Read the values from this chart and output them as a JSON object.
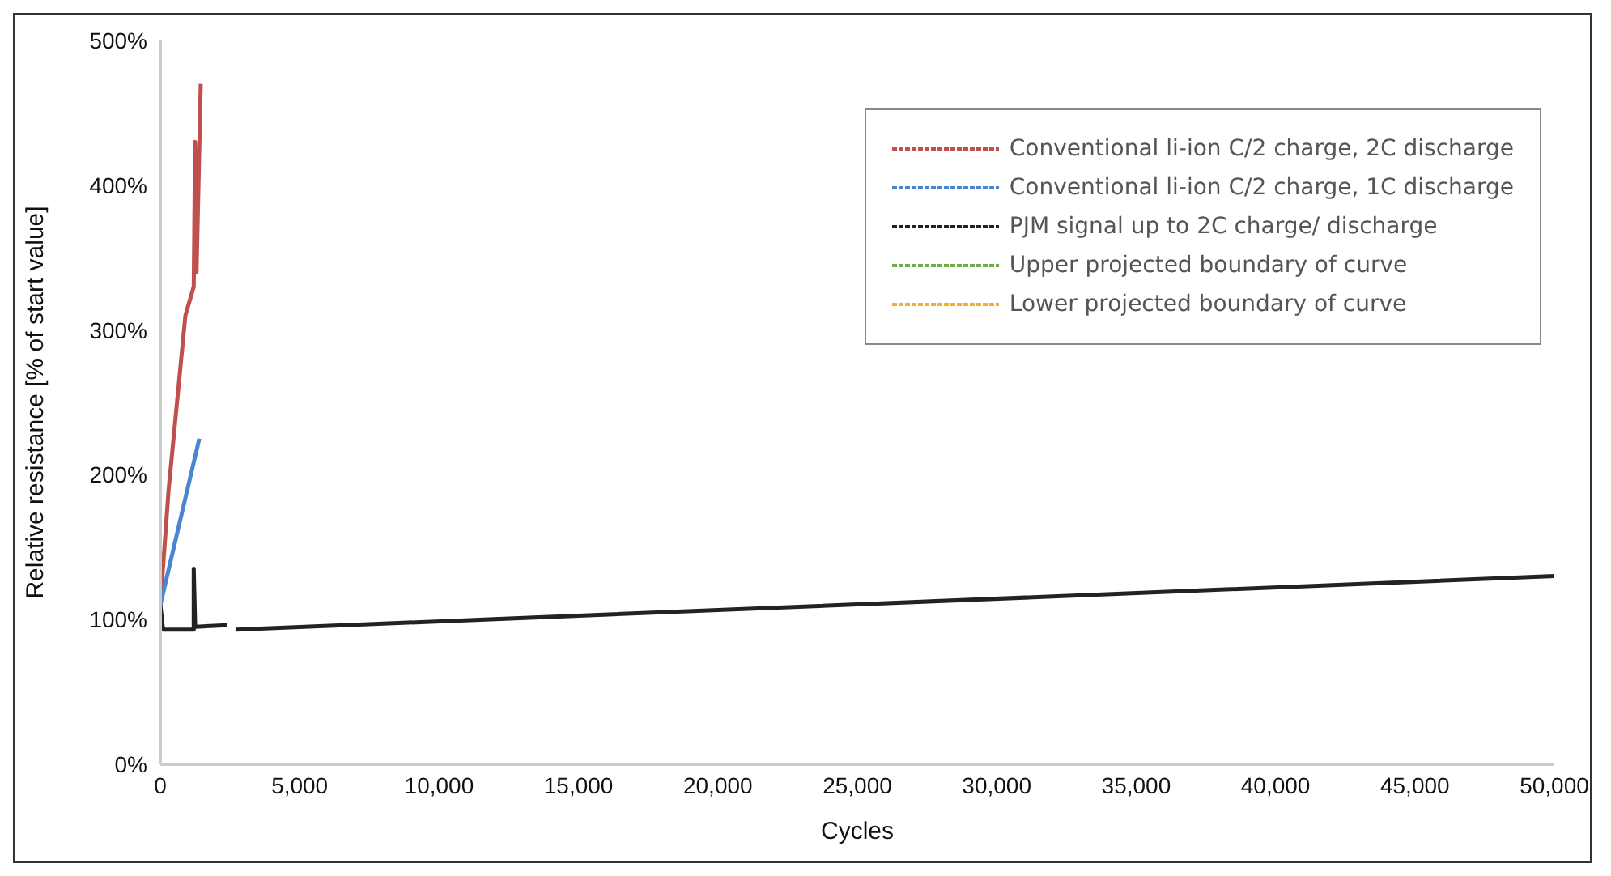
{
  "chart_data": {
    "type": "line",
    "xlabel": "Cycles",
    "ylabel": "Relative resistance [% of start value]",
    "xlim": [
      0,
      50000
    ],
    "xticks": [
      {
        "value": 0,
        "label": "0"
      },
      {
        "value": 5000,
        "label": "5,000"
      },
      {
        "value": 10000,
        "label": "10,000"
      },
      {
        "value": 15000,
        "label": "15,000"
      },
      {
        "value": 20000,
        "label": "20,000"
      },
      {
        "value": 25000,
        "label": "25,000"
      },
      {
        "value": 30000,
        "label": "30,000"
      },
      {
        "value": 35000,
        "label": "35,000"
      },
      {
        "value": 40000,
        "label": "40,000"
      },
      {
        "value": 45000,
        "label": "45,000"
      },
      {
        "value": 50000,
        "label": "50,000"
      }
    ],
    "ylim": [
      0,
      500
    ],
    "yticks": [
      {
        "value": 0,
        "label": "0%"
      },
      {
        "value": 100,
        "label": "100%"
      },
      {
        "value": 200,
        "label": "200%"
      },
      {
        "value": 300,
        "label": "300%"
      },
      {
        "value": 400,
        "label": "400%"
      },
      {
        "value": 500,
        "label": "500%"
      }
    ],
    "grid": false,
    "legend": "top right",
    "marker": "none",
    "line_style": "solid",
    "series": [
      {
        "name": "Conventional li-ion C/2 charge, 2C discharge",
        "color": "#c0504d",
        "x": [
          0,
          300,
          600,
          900,
          1200,
          1250,
          1300,
          1450
        ],
        "values": [
          110,
          190,
          250,
          310,
          330,
          430,
          340,
          470
        ]
      },
      {
        "name": "Conventional li-ion C/2 charge, 1C discharge",
        "color": "#4a86d0",
        "x": [
          0,
          1400
        ],
        "values": [
          110,
          225
        ]
      },
      {
        "name": "PJM signal up to 2C charge/ discharge",
        "color": "#222222",
        "x": [
          0,
          100,
          1200,
          1200,
          1250,
          2400,
          2500,
          2700,
          50000
        ],
        "values": [
          110,
          93,
          93,
          135,
          95,
          96,
          null,
          93,
          130
        ]
      },
      {
        "name": "Upper projected boundary of curve",
        "color": "#70ad47"
      },
      {
        "name": "Lower projected boundary of curve",
        "color": "#f0b030"
      }
    ]
  }
}
